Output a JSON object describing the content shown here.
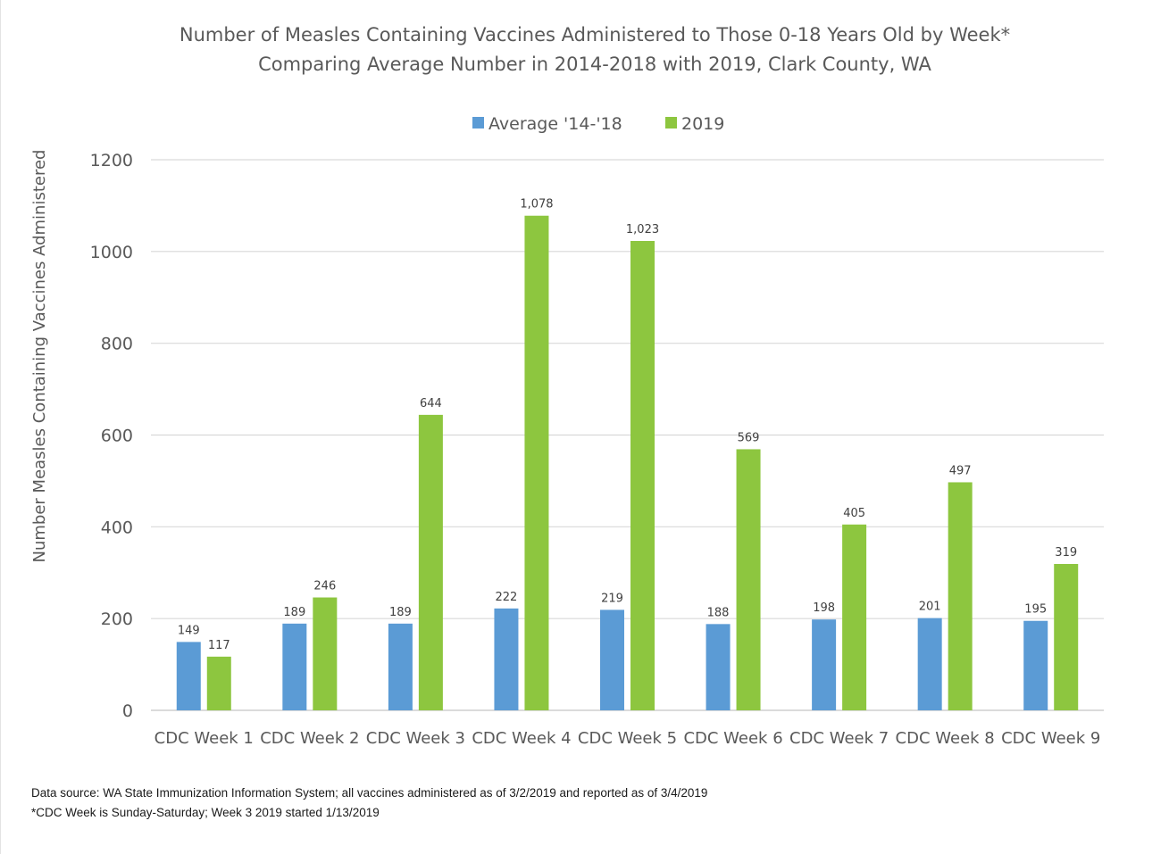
{
  "chart_data": {
    "type": "bar",
    "title": [
      "Number of Measles Containing Vaccines Administered to Those 0-18 Years Old by Week*",
      "Comparing Average Number in 2014-2018 with 2019, Clark County, WA"
    ],
    "xlabel": "",
    "ylabel": "Number Measles Containing Vaccines Administered",
    "ylim": [
      0,
      1200
    ],
    "yticks": [
      "0",
      "200",
      "400",
      "600",
      "800",
      "1000",
      "1200"
    ],
    "grid": true,
    "legend_position": "top-center",
    "categories": [
      "CDC Week 1",
      "CDC Week 2",
      "CDC Week 3",
      "CDC Week 4",
      "CDC Week 5",
      "CDC Week 6",
      "CDC Week 7",
      "CDC Week 8",
      "CDC Week 9"
    ],
    "series": [
      {
        "name": "Average '14-'18",
        "color": "#5b9bd5",
        "values": [
          149,
          189,
          189,
          222,
          219,
          188,
          198,
          201,
          195
        ],
        "labels": [
          "149",
          "189",
          "189",
          "222",
          "219",
          "188",
          "198",
          "201",
          "195"
        ]
      },
      {
        "name": "2019",
        "color": "#8dc63f",
        "values": [
          117,
          246,
          644,
          1078,
          1023,
          569,
          405,
          497,
          319
        ],
        "labels": [
          "117",
          "246",
          "644",
          "1,078",
          "1,023",
          "569",
          "405",
          "497",
          "319"
        ]
      }
    ]
  },
  "footnotes": [
    "Data source: WA State Immunization Information System; all vaccines administered as of 3/2/2019 and reported as of 3/4/2019",
    "*CDC Week is Sunday-Saturday; Week 3 2019 started 1/13/2019"
  ]
}
